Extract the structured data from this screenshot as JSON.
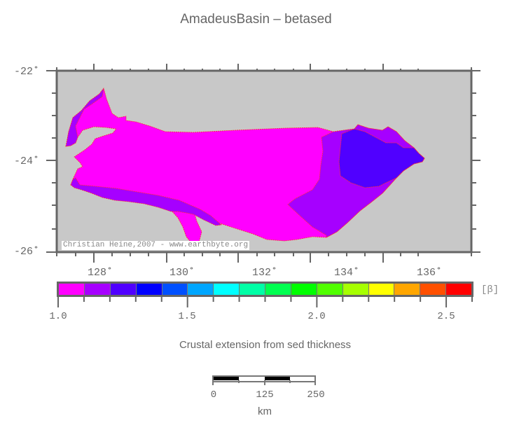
{
  "title": "AmadeusBasin – betased",
  "map": {
    "background_color": "#c8c8c8",
    "frame_color": "#666666",
    "y_axis": {
      "labels": [
        "-22˚",
        "-24˚",
        "-26˚"
      ],
      "values": [
        -22,
        -24,
        -26
      ]
    },
    "x_axis": {
      "labels": [
        "128˚",
        "130˚",
        "132˚",
        "134˚",
        "136˚"
      ],
      "values": [
        128,
        130,
        132,
        134,
        136
      ]
    },
    "credit": "Christian Heine,2007 - www.earthbyte.org",
    "region_colors": {
      "beta_1_0": "#ff00ff",
      "beta_1_1": "#a600ff",
      "beta_1_2": "#5000ff",
      "outline": "#ff3030"
    }
  },
  "colorbar": {
    "unit": "[β]",
    "min": 1.0,
    "max": 2.6,
    "step": 0.1,
    "tick_labels": [
      "1.0",
      "1.5",
      "2.0",
      "2.5"
    ],
    "colors": [
      "#ff00ff",
      "#a600ff",
      "#5000ff",
      "#0000ff",
      "#0050ff",
      "#00a6ff",
      "#00ffff",
      "#00ffa6",
      "#00ff50",
      "#00ff00",
      "#50ff00",
      "#a6ff00",
      "#ffff00",
      "#ffa600",
      "#ff5000",
      "#ff0000"
    ]
  },
  "subtitle": "Crustal extension from sed thickness",
  "scalebar": {
    "labels": [
      "0",
      "125",
      "250"
    ],
    "unit": "km"
  }
}
